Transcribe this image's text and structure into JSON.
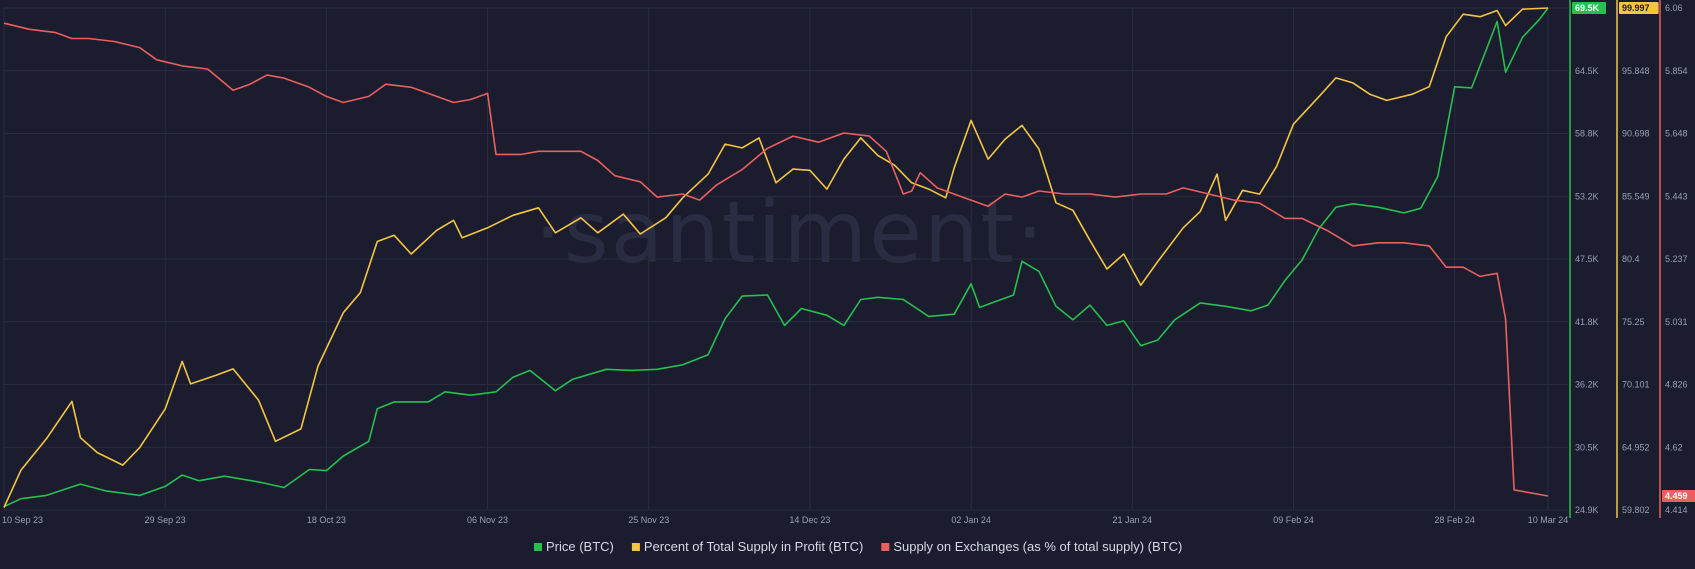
{
  "watermark": "·santiment·",
  "colors": {
    "background": "#1b1c2e",
    "grid": "#2a2c40",
    "price": "#26c04f",
    "profit": "#f4c542",
    "exchanges": "#e9605f"
  },
  "chart_data": {
    "type": "line",
    "x_tick_labels": [
      "10 Sep 23",
      "29 Sep 23",
      "18 Oct 23",
      "06 Nov 23",
      "25 Nov 23",
      "14 Dec 23",
      "02 Jan 24",
      "21 Jan 24",
      "09 Feb 24",
      "28 Feb 24",
      "10 Mar 24"
    ],
    "x_start": "2023-09-10",
    "x_end": "2024-03-10",
    "grid": true,
    "legend_position": "bottom-center",
    "axes": [
      {
        "series": "Price (BTC)",
        "tick_labels": [
          "69.5K",
          "64.5K",
          "58.8K",
          "53.2K",
          "47.5K",
          "41.8K",
          "36.2K",
          "30.5K",
          "24.9K"
        ],
        "min": 24900,
        "max": 69500,
        "current_value_badge": "69.5K"
      },
      {
        "series": "Percent of Total Supply in Profit (BTC)",
        "tick_labels": [
          "100",
          "95.848",
          "90.698",
          "85.549",
          "80.4",
          "75.25",
          "70.101",
          "64.952",
          "59.802"
        ],
        "min": 59.802,
        "max": 100,
        "current_value_badge": "99.997"
      },
      {
        "series": "Supply on Exchanges (as % of total supply) (BTC)",
        "tick_labels": [
          "6.06",
          "5.854",
          "5.648",
          "5.443",
          "5.237",
          "5.031",
          "4.826",
          "4.62",
          "4.414"
        ],
        "min": 4.414,
        "max": 6.06,
        "current_value_badge": "4.459"
      }
    ],
    "series": [
      {
        "name": "Price (BTC)",
        "color": "#26c04f",
        "points": [
          [
            "2023-09-10",
            25200
          ],
          [
            "2023-09-12",
            25900
          ],
          [
            "2023-09-15",
            26200
          ],
          [
            "2023-09-19",
            27200
          ],
          [
            "2023-09-22",
            26600
          ],
          [
            "2023-09-26",
            26200
          ],
          [
            "2023-09-29",
            27000
          ],
          [
            "2023-10-01",
            28000
          ],
          [
            "2023-10-03",
            27500
          ],
          [
            "2023-10-06",
            27900
          ],
          [
            "2023-10-10",
            27400
          ],
          [
            "2023-10-13",
            26900
          ],
          [
            "2023-10-16",
            28500
          ],
          [
            "2023-10-18",
            28400
          ],
          [
            "2023-10-20",
            29700
          ],
          [
            "2023-10-23",
            31000
          ],
          [
            "2023-10-24",
            33900
          ],
          [
            "2023-10-26",
            34500
          ],
          [
            "2023-10-30",
            34500
          ],
          [
            "2023-11-01",
            35400
          ],
          [
            "2023-11-04",
            35100
          ],
          [
            "2023-11-07",
            35400
          ],
          [
            "2023-11-09",
            36700
          ],
          [
            "2023-11-11",
            37300
          ],
          [
            "2023-11-14",
            35500
          ],
          [
            "2023-11-16",
            36500
          ],
          [
            "2023-11-20",
            37400
          ],
          [
            "2023-11-23",
            37300
          ],
          [
            "2023-11-26",
            37400
          ],
          [
            "2023-11-29",
            37800
          ],
          [
            "2023-12-02",
            38700
          ],
          [
            "2023-12-04",
            41900
          ],
          [
            "2023-12-06",
            43900
          ],
          [
            "2023-12-09",
            44000
          ],
          [
            "2023-12-11",
            41300
          ],
          [
            "2023-12-13",
            42800
          ],
          [
            "2023-12-16",
            42200
          ],
          [
            "2023-12-18",
            41300
          ],
          [
            "2023-12-20",
            43600
          ],
          [
            "2023-12-22",
            43800
          ],
          [
            "2023-12-25",
            43600
          ],
          [
            "2023-12-28",
            42100
          ],
          [
            "2023-12-31",
            42300
          ],
          [
            "2024-01-02",
            45000
          ],
          [
            "2024-01-03",
            42900
          ],
          [
            "2024-01-07",
            44000
          ],
          [
            "2024-01-08",
            47000
          ],
          [
            "2024-01-10",
            46100
          ],
          [
            "2024-01-12",
            43000
          ],
          [
            "2024-01-14",
            41800
          ],
          [
            "2024-01-16",
            43100
          ],
          [
            "2024-01-18",
            41300
          ],
          [
            "2024-01-20",
            41700
          ],
          [
            "2024-01-22",
            39500
          ],
          [
            "2024-01-24",
            40000
          ],
          [
            "2024-01-26",
            41800
          ],
          [
            "2024-01-29",
            43300
          ],
          [
            "2024-02-01",
            43000
          ],
          [
            "2024-02-04",
            42600
          ],
          [
            "2024-02-06",
            43100
          ],
          [
            "2024-02-08",
            45300
          ],
          [
            "2024-02-10",
            47100
          ],
          [
            "2024-02-12",
            49900
          ],
          [
            "2024-02-14",
            51800
          ],
          [
            "2024-02-16",
            52100
          ],
          [
            "2024-02-19",
            51800
          ],
          [
            "2024-02-22",
            51300
          ],
          [
            "2024-02-24",
            51700
          ],
          [
            "2024-02-26",
            54500
          ],
          [
            "2024-02-28",
            62500
          ],
          [
            "2024-03-01",
            62400
          ],
          [
            "2024-03-04",
            68300
          ],
          [
            "2024-03-05",
            63800
          ],
          [
            "2024-03-07",
            66900
          ],
          [
            "2024-03-09",
            68500
          ],
          [
            "2024-03-10",
            69500
          ]
        ]
      },
      {
        "name": "Percent of Total Supply in Profit (BTC)",
        "color": "#f4c542",
        "points": [
          [
            "2023-09-10",
            60.0
          ],
          [
            "2023-09-12",
            63.0
          ],
          [
            "2023-09-15",
            65.5
          ],
          [
            "2023-09-18",
            68.5
          ],
          [
            "2023-09-19",
            65.6
          ],
          [
            "2023-09-21",
            64.4
          ],
          [
            "2023-09-24",
            63.4
          ],
          [
            "2023-09-26",
            64.8
          ],
          [
            "2023-09-29",
            67.9
          ],
          [
            "2023-10-01",
            71.7
          ],
          [
            "2023-10-02",
            69.9
          ],
          [
            "2023-10-05",
            70.6
          ],
          [
            "2023-10-07",
            71.1
          ],
          [
            "2023-10-10",
            68.6
          ],
          [
            "2023-10-12",
            65.3
          ],
          [
            "2023-10-15",
            66.3
          ],
          [
            "2023-10-17",
            71.3
          ],
          [
            "2023-10-20",
            75.6
          ],
          [
            "2023-10-22",
            77.2
          ],
          [
            "2023-10-24",
            81.3
          ],
          [
            "2023-10-26",
            81.8
          ],
          [
            "2023-10-28",
            80.3
          ],
          [
            "2023-10-31",
            82.2
          ],
          [
            "2023-11-02",
            83.0
          ],
          [
            "2023-11-03",
            81.6
          ],
          [
            "2023-11-06",
            82.4
          ],
          [
            "2023-11-09",
            83.4
          ],
          [
            "2023-11-12",
            84.0
          ],
          [
            "2023-11-14",
            82.0
          ],
          [
            "2023-11-17",
            83.2
          ],
          [
            "2023-11-19",
            82.0
          ],
          [
            "2023-11-22",
            83.5
          ],
          [
            "2023-11-24",
            81.9
          ],
          [
            "2023-11-27",
            83.2
          ],
          [
            "2023-11-29",
            84.8
          ],
          [
            "2023-12-02",
            86.7
          ],
          [
            "2023-12-04",
            89.1
          ],
          [
            "2023-12-06",
            88.8
          ],
          [
            "2023-12-08",
            89.6
          ],
          [
            "2023-12-10",
            86.0
          ],
          [
            "2023-12-12",
            87.1
          ],
          [
            "2023-12-14",
            87.0
          ],
          [
            "2023-12-16",
            85.5
          ],
          [
            "2023-12-18",
            87.9
          ],
          [
            "2023-12-20",
            89.6
          ],
          [
            "2023-12-22",
            88.2
          ],
          [
            "2023-12-24",
            87.4
          ],
          [
            "2023-12-26",
            86.0
          ],
          [
            "2023-12-28",
            85.5
          ],
          [
            "2023-12-30",
            84.8
          ],
          [
            "2023-12-31",
            87.2
          ],
          [
            "2024-01-02",
            91.0
          ],
          [
            "2024-01-04",
            87.9
          ],
          [
            "2024-01-06",
            89.5
          ],
          [
            "2024-01-08",
            90.6
          ],
          [
            "2024-01-10",
            88.7
          ],
          [
            "2024-01-12",
            84.4
          ],
          [
            "2024-01-14",
            83.8
          ],
          [
            "2024-01-16",
            81.4
          ],
          [
            "2024-01-18",
            79.1
          ],
          [
            "2024-01-20",
            80.3
          ],
          [
            "2024-01-22",
            77.8
          ],
          [
            "2024-01-24",
            79.7
          ],
          [
            "2024-01-27",
            82.4
          ],
          [
            "2024-01-29",
            83.7
          ],
          [
            "2024-01-31",
            86.7
          ],
          [
            "2024-02-01",
            83.0
          ],
          [
            "2024-02-03",
            85.4
          ],
          [
            "2024-02-05",
            85.1
          ],
          [
            "2024-02-07",
            87.3
          ],
          [
            "2024-02-09",
            90.7
          ],
          [
            "2024-02-12",
            92.9
          ],
          [
            "2024-02-14",
            94.4
          ],
          [
            "2024-02-16",
            94.0
          ],
          [
            "2024-02-18",
            93.1
          ],
          [
            "2024-02-20",
            92.6
          ],
          [
            "2024-02-23",
            93.1
          ],
          [
            "2024-02-25",
            93.7
          ],
          [
            "2024-02-27",
            97.7
          ],
          [
            "2024-02-29",
            99.5
          ],
          [
            "2024-03-02",
            99.3
          ],
          [
            "2024-03-04",
            99.8
          ],
          [
            "2024-03-05",
            98.6
          ],
          [
            "2024-03-07",
            99.9
          ],
          [
            "2024-03-10",
            100.0
          ]
        ]
      },
      {
        "name": "Supply on Exchanges (as % of total supply) (BTC)",
        "color": "#e9605f",
        "points": [
          [
            "2023-09-10",
            6.01
          ],
          [
            "2023-09-13",
            5.99
          ],
          [
            "2023-09-16",
            5.98
          ],
          [
            "2023-09-18",
            5.96
          ],
          [
            "2023-09-20",
            5.96
          ],
          [
            "2023-09-23",
            5.95
          ],
          [
            "2023-09-26",
            5.93
          ],
          [
            "2023-09-28",
            5.89
          ],
          [
            "2023-10-01",
            5.87
          ],
          [
            "2023-10-04",
            5.86
          ],
          [
            "2023-10-07",
            5.79
          ],
          [
            "2023-10-09",
            5.81
          ],
          [
            "2023-10-11",
            5.84
          ],
          [
            "2023-10-13",
            5.83
          ],
          [
            "2023-10-16",
            5.8
          ],
          [
            "2023-10-18",
            5.77
          ],
          [
            "2023-10-20",
            5.75
          ],
          [
            "2023-10-23",
            5.77
          ],
          [
            "2023-10-25",
            5.81
          ],
          [
            "2023-10-28",
            5.8
          ],
          [
            "2023-10-31",
            5.77
          ],
          [
            "2023-11-02",
            5.75
          ],
          [
            "2023-11-04",
            5.76
          ],
          [
            "2023-11-06",
            5.78
          ],
          [
            "2023-11-07",
            5.58
          ],
          [
            "2023-11-10",
            5.58
          ],
          [
            "2023-11-12",
            5.59
          ],
          [
            "2023-11-15",
            5.59
          ],
          [
            "2023-11-17",
            5.59
          ],
          [
            "2023-11-19",
            5.56
          ],
          [
            "2023-11-21",
            5.51
          ],
          [
            "2023-11-24",
            5.49
          ],
          [
            "2023-11-26",
            5.44
          ],
          [
            "2023-11-29",
            5.45
          ],
          [
            "2023-12-01",
            5.43
          ],
          [
            "2023-12-03",
            5.48
          ],
          [
            "2023-12-06",
            5.53
          ],
          [
            "2023-12-09",
            5.6
          ],
          [
            "2023-12-12",
            5.64
          ],
          [
            "2023-12-15",
            5.62
          ],
          [
            "2023-12-18",
            5.65
          ],
          [
            "2023-12-21",
            5.64
          ],
          [
            "2023-12-23",
            5.59
          ],
          [
            "2023-12-25",
            5.45
          ],
          [
            "2023-12-26",
            5.46
          ],
          [
            "2023-12-27",
            5.52
          ],
          [
            "2023-12-29",
            5.47
          ],
          [
            "2024-01-01",
            5.44
          ],
          [
            "2024-01-04",
            5.41
          ],
          [
            "2024-01-06",
            5.45
          ],
          [
            "2024-01-08",
            5.44
          ],
          [
            "2024-01-10",
            5.46
          ],
          [
            "2024-01-13",
            5.45
          ],
          [
            "2024-01-16",
            5.45
          ],
          [
            "2024-01-19",
            5.44
          ],
          [
            "2024-01-22",
            5.45
          ],
          [
            "2024-01-25",
            5.45
          ],
          [
            "2024-01-27",
            5.47
          ],
          [
            "2024-01-30",
            5.45
          ],
          [
            "2024-02-02",
            5.43
          ],
          [
            "2024-02-05",
            5.42
          ],
          [
            "2024-02-08",
            5.37
          ],
          [
            "2024-02-10",
            5.37
          ],
          [
            "2024-02-13",
            5.33
          ],
          [
            "2024-02-16",
            5.28
          ],
          [
            "2024-02-19",
            5.29
          ],
          [
            "2024-02-22",
            5.29
          ],
          [
            "2024-02-25",
            5.28
          ],
          [
            "2024-02-27",
            5.21
          ],
          [
            "2024-02-29",
            5.21
          ],
          [
            "2024-03-02",
            5.18
          ],
          [
            "2024-03-04",
            5.19
          ],
          [
            "2024-03-05",
            5.04
          ],
          [
            "2024-03-06",
            4.48
          ],
          [
            "2024-03-08",
            4.47
          ],
          [
            "2024-03-10",
            4.46
          ]
        ]
      }
    ]
  }
}
